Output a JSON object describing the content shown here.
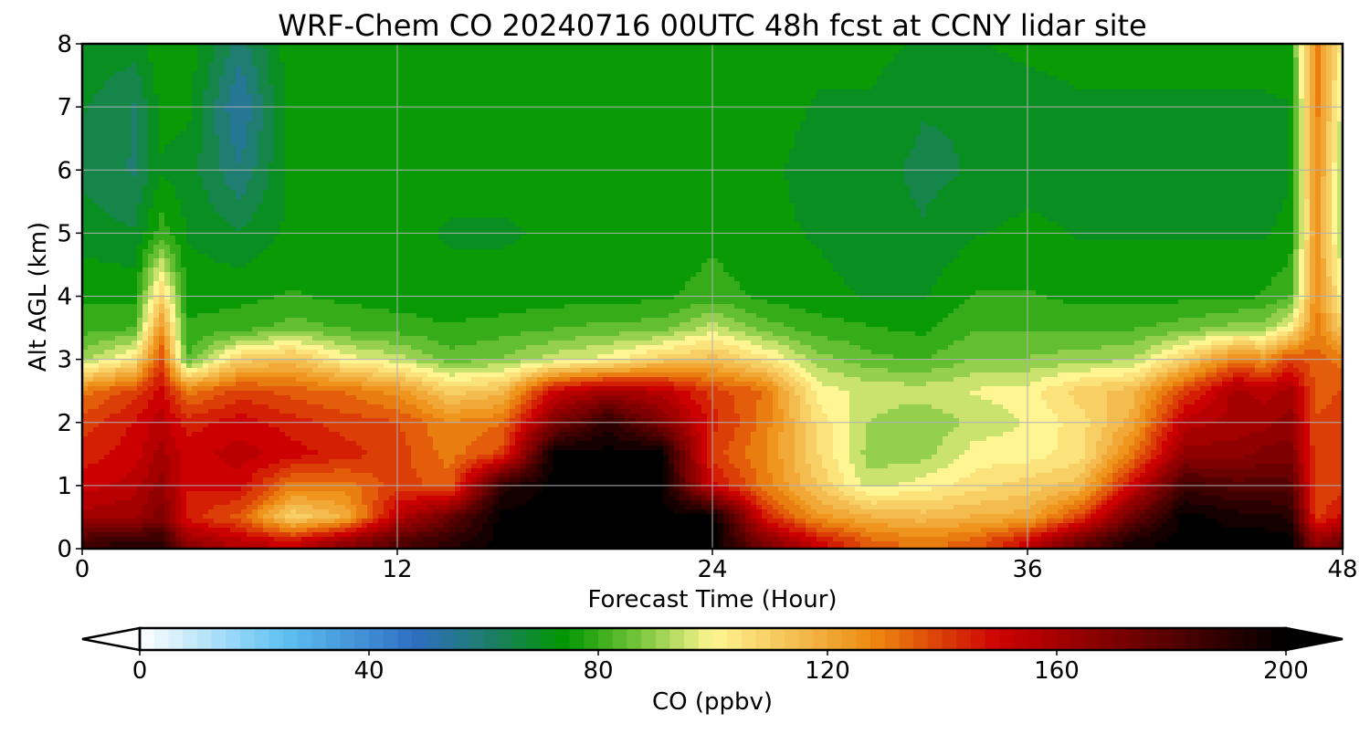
{
  "chart_data": {
    "type": "heatmap",
    "title": "WRF-Chem CO  20240716 00UTC 48h fcst at CCNY lidar site",
    "xlabel": "Forecast Time (Hour)",
    "ylabel": "Alt AGL (km)",
    "xlim": [
      0,
      48
    ],
    "ylim": [
      0,
      8
    ],
    "xticks": [
      0,
      12,
      24,
      36,
      48
    ],
    "yticks": [
      0,
      1,
      2,
      3,
      4,
      5,
      6,
      7,
      8
    ],
    "grid": true,
    "x": [
      0,
      2,
      3,
      4,
      6,
      8,
      10,
      12,
      14,
      16,
      18,
      20,
      22,
      24,
      26,
      28,
      30,
      32,
      34,
      36,
      38,
      40,
      42,
      44,
      45,
      46,
      47,
      48
    ],
    "y": [
      0.1,
      0.5,
      1.0,
      1.5,
      2.0,
      2.5,
      3.0,
      3.5,
      4.0,
      5.0,
      6.0,
      7.0,
      8.0
    ],
    "z_columns": [
      [
        185,
        160,
        150,
        145,
        140,
        130,
        90,
        80,
        77,
        70,
        66,
        68,
        72
      ],
      [
        190,
        162,
        155,
        150,
        148,
        140,
        105,
        82,
        76,
        68,
        62,
        62,
        70
      ],
      [
        190,
        170,
        165,
        160,
        155,
        150,
        140,
        125,
        110,
        80,
        72,
        74,
        76
      ],
      [
        165,
        145,
        148,
        150,
        145,
        130,
        82,
        78,
        76,
        72,
        70,
        74,
        76
      ],
      [
        155,
        135,
        150,
        155,
        150,
        140,
        110,
        80,
        76,
        68,
        58,
        52,
        60
      ],
      [
        150,
        108,
        130,
        150,
        145,
        135,
        115,
        85,
        78,
        74,
        74,
        76,
        76
      ],
      [
        165,
        118,
        130,
        145,
        140,
        132,
        100,
        82,
        76,
        74,
        76,
        76,
        76
      ],
      [
        180,
        155,
        140,
        140,
        138,
        125,
        95,
        80,
        75,
        74,
        76,
        76,
        76
      ],
      [
        190,
        175,
        135,
        130,
        128,
        110,
        85,
        78,
        74,
        72,
        74,
        76,
        76
      ],
      [
        200,
        200,
        190,
        140,
        132,
        115,
        88,
        80,
        74,
        72,
        74,
        76,
        76
      ],
      [
        200,
        200,
        200,
        200,
        170,
        150,
        95,
        82,
        75,
        73,
        74,
        76,
        76
      ],
      [
        200,
        200,
        200,
        200,
        190,
        160,
        100,
        84,
        76,
        74,
        76,
        76,
        76
      ],
      [
        200,
        200,
        200,
        200,
        170,
        155,
        110,
        85,
        76,
        74,
        75,
        76,
        76
      ],
      [
        200,
        200,
        150,
        140,
        145,
        140,
        115,
        95,
        80,
        76,
        75,
        76,
        76
      ],
      [
        170,
        145,
        130,
        128,
        130,
        132,
        105,
        85,
        76,
        74,
        74,
        75,
        76
      ],
      [
        150,
        125,
        112,
        108,
        106,
        100,
        90,
        80,
        74,
        72,
        70,
        72,
        74
      ],
      [
        135,
        118,
        95,
        90,
        92,
        96,
        84,
        78,
        72,
        70,
        70,
        72,
        74
      ],
      [
        130,
        115,
        100,
        90,
        88,
        95,
        82,
        76,
        72,
        68,
        66,
        68,
        72
      ],
      [
        135,
        118,
        105,
        100,
        94,
        98,
        88,
        82,
        78,
        72,
        68,
        68,
        72
      ],
      [
        150,
        120,
        110,
        100,
        98,
        100,
        88,
        82,
        78,
        74,
        70,
        70,
        74
      ],
      [
        175,
        140,
        115,
        105,
        105,
        110,
        90,
        82,
        76,
        72,
        70,
        72,
        74
      ],
      [
        195,
        175,
        150,
        130,
        120,
        115,
        92,
        82,
        76,
        72,
        70,
        72,
        74
      ],
      [
        200,
        200,
        185,
        165,
        155,
        140,
        110,
        85,
        76,
        72,
        70,
        72,
        74
      ],
      [
        200,
        195,
        180,
        165,
        160,
        160,
        130,
        90,
        76,
        72,
        70,
        72,
        74
      ],
      [
        200,
        195,
        180,
        170,
        160,
        155,
        125,
        90,
        78,
        72,
        70,
        72,
        74
      ],
      [
        200,
        192,
        180,
        170,
        165,
        160,
        140,
        100,
        82,
        74,
        72,
        72,
        76
      ],
      [
        165,
        140,
        138,
        138,
        138,
        135,
        135,
        130,
        128,
        125,
        128,
        130,
        130
      ],
      [
        175,
        150,
        140,
        140,
        140,
        138,
        130,
        110,
        100,
        90,
        90,
        95,
        100
      ]
    ],
    "colorbar": {
      "label": "CO  (ppbv)",
      "min": 0,
      "max": 200,
      "extend": "both",
      "ticks": [
        0,
        40,
        80,
        120,
        160,
        200
      ],
      "tick_labels": [
        "0",
        "40",
        "80",
        "120",
        "160",
        "200"
      ],
      "color_stops": [
        {
          "v": 0,
          "c": "#ffffff"
        },
        {
          "v": 25,
          "c": "#5fc2f2"
        },
        {
          "v": 48,
          "c": "#2e6ec2"
        },
        {
          "v": 62,
          "c": "#1c7f63"
        },
        {
          "v": 74,
          "c": "#009600"
        },
        {
          "v": 88,
          "c": "#7fc93f"
        },
        {
          "v": 100,
          "c": "#fff592"
        },
        {
          "v": 115,
          "c": "#f4bc4e"
        },
        {
          "v": 128,
          "c": "#ed8910"
        },
        {
          "v": 150,
          "c": "#cc0000"
        },
        {
          "v": 175,
          "c": "#6a0000"
        },
        {
          "v": 200,
          "c": "#000000"
        }
      ]
    }
  }
}
